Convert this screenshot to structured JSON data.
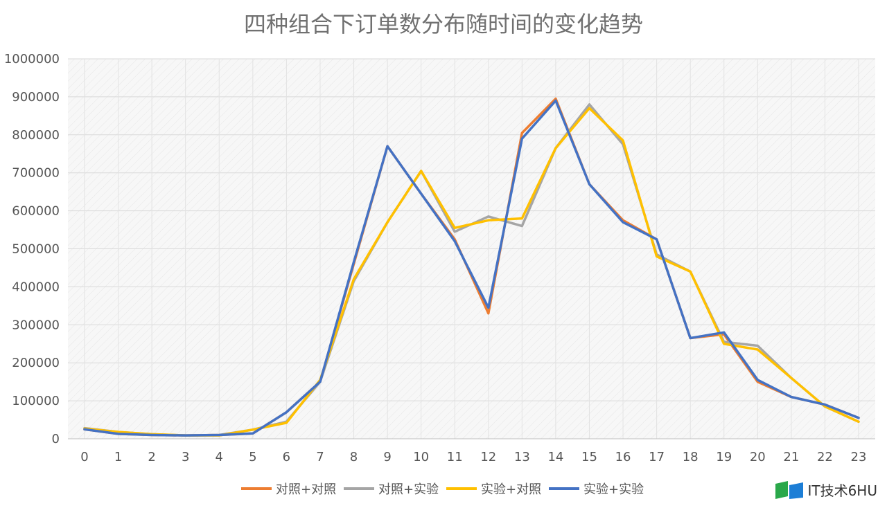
{
  "chart_data": {
    "type": "line",
    "title": "四种组合下订单数分布随时间的变化趋势",
    "xlabel": "",
    "ylabel": "",
    "x": [
      0,
      1,
      2,
      3,
      4,
      5,
      6,
      7,
      8,
      9,
      10,
      11,
      12,
      13,
      14,
      15,
      16,
      17,
      18,
      19,
      20,
      21,
      22,
      23
    ],
    "ylim": [
      0,
      1000000
    ],
    "yticks": [
      0,
      100000,
      200000,
      300000,
      400000,
      500000,
      600000,
      700000,
      800000,
      900000,
      1000000
    ],
    "grid": true,
    "legend_position": "bottom",
    "series": [
      {
        "name": "对照+对照",
        "color": "#ED7D31",
        "values": [
          25000,
          13000,
          10000,
          9000,
          10000,
          14000,
          70000,
          150000,
          460000,
          770000,
          645000,
          525000,
          330000,
          805000,
          895000,
          670000,
          575000,
          525000,
          265000,
          275000,
          150000,
          110000,
          90000,
          55000
        ]
      },
      {
        "name": "对照+实验",
        "color": "#A5A5A5",
        "values": [
          28000,
          18000,
          12000,
          9000,
          10000,
          24000,
          45000,
          150000,
          415000,
          570000,
          705000,
          545000,
          585000,
          560000,
          765000,
          880000,
          775000,
          485000,
          440000,
          255000,
          245000,
          160000,
          85000,
          45000
        ]
      },
      {
        "name": "实验+对照",
        "color": "#FFC000",
        "values": [
          27000,
          18000,
          12000,
          9000,
          9000,
          24000,
          42000,
          155000,
          420000,
          570000,
          705000,
          555000,
          575000,
          580000,
          765000,
          870000,
          785000,
          480000,
          440000,
          250000,
          235000,
          160000,
          85000,
          45000
        ]
      },
      {
        "name": "实验+实验",
        "color": "#4472C4",
        "values": [
          25000,
          13000,
          10000,
          9000,
          10000,
          14000,
          70000,
          150000,
          465000,
          770000,
          645000,
          520000,
          345000,
          790000,
          890000,
          670000,
          570000,
          525000,
          265000,
          280000,
          155000,
          110000,
          90000,
          55000
        ]
      }
    ]
  },
  "watermark": {
    "text": "IT技术6HU"
  }
}
